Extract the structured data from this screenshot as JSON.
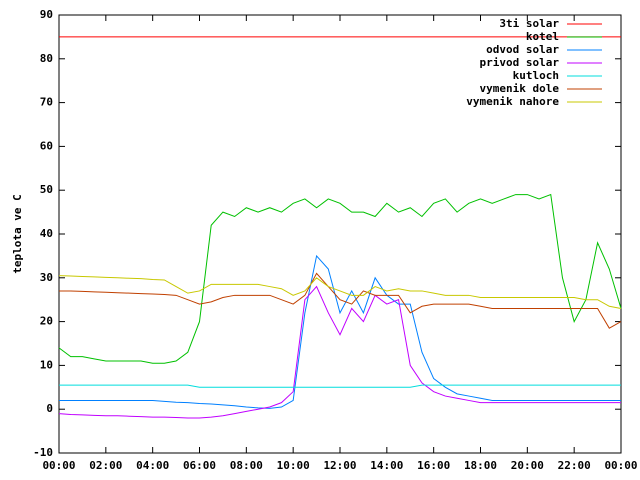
{
  "chart_data": {
    "type": "line",
    "y_label": "teplota ve C",
    "x": [
      0,
      0.5,
      1,
      1.5,
      2,
      2.5,
      3,
      3.5,
      4,
      4.5,
      5,
      5.5,
      6,
      6.5,
      7,
      7.5,
      8,
      8.5,
      9,
      9.5,
      10,
      10.5,
      11,
      11.5,
      12,
      12.5,
      13,
      13.5,
      14,
      14.5,
      15,
      15.5,
      16,
      16.5,
      17,
      17.5,
      18,
      18.5,
      19,
      19.5,
      20,
      20.5,
      21,
      21.5,
      22,
      22.5,
      23,
      23.5,
      24
    ],
    "xlim": [
      0,
      24
    ],
    "xticks": [
      {
        "value": 0,
        "label": "00:00"
      },
      {
        "value": 2,
        "label": "02:00"
      },
      {
        "value": 4,
        "label": "04:00"
      },
      {
        "value": 6,
        "label": "06:00"
      },
      {
        "value": 8,
        "label": "08:00"
      },
      {
        "value": 10,
        "label": "10:00"
      },
      {
        "value": 12,
        "label": "12:00"
      },
      {
        "value": 14,
        "label": "14:00"
      },
      {
        "value": 16,
        "label": "16:00"
      },
      {
        "value": 18,
        "label": "18:00"
      },
      {
        "value": 20,
        "label": "20:00"
      },
      {
        "value": 22,
        "label": "22:00"
      },
      {
        "value": 24,
        "label": "00:00"
      }
    ],
    "ylim": [
      -10,
      90
    ],
    "yticks": [
      -10,
      0,
      10,
      20,
      30,
      40,
      50,
      60,
      70,
      80,
      90
    ],
    "legend": "top-right",
    "series": [
      {
        "name": "3ti solar",
        "color": "#ff0000",
        "values": [
          85,
          85,
          85,
          85,
          85,
          85,
          85,
          85,
          85,
          85,
          85,
          85,
          85,
          85,
          85,
          85,
          85,
          85,
          85,
          85,
          85,
          85,
          85,
          85,
          85,
          85,
          85,
          85,
          85,
          85,
          85,
          85,
          85,
          85,
          85,
          85,
          85,
          85,
          85,
          85,
          85,
          85,
          85,
          85,
          85,
          85,
          85,
          85,
          85
        ]
      },
      {
        "name": "kotel",
        "color": "#00c000",
        "values": [
          14,
          12,
          12,
          11.5,
          11,
          11,
          11,
          11,
          10.5,
          10.5,
          11,
          13,
          20,
          42,
          45,
          44,
          46,
          45,
          46,
          45,
          47,
          48,
          46,
          48,
          47,
          45,
          45,
          44,
          47,
          45,
          46,
          44,
          47,
          48,
          45,
          47,
          48,
          47,
          48,
          49,
          49,
          48,
          49,
          30,
          20,
          25,
          38,
          32,
          23
        ]
      },
      {
        "name": "odvod solar",
        "color": "#0080ff",
        "values": [
          2,
          2,
          2,
          2,
          2,
          2,
          2,
          2,
          2,
          1.8,
          1.6,
          1.5,
          1.3,
          1.2,
          1,
          0.8,
          0.5,
          0.3,
          0.2,
          0.5,
          2,
          22,
          35,
          32,
          22,
          27,
          22,
          30,
          26,
          24,
          24,
          13,
          7,
          5,
          3.5,
          3,
          2.5,
          2,
          2,
          2,
          2,
          2,
          2,
          2,
          2,
          2,
          2,
          2,
          2
        ]
      },
      {
        "name": "privod solar",
        "color": "#c000ff",
        "values": [
          -1,
          -1.2,
          -1.3,
          -1.4,
          -1.5,
          -1.5,
          -1.6,
          -1.7,
          -1.8,
          -1.8,
          -1.9,
          -2,
          -2,
          -1.8,
          -1.5,
          -1,
          -0.5,
          0,
          0.5,
          1.5,
          4,
          25,
          28,
          22,
          17,
          23,
          20,
          26,
          24,
          25,
          10,
          6,
          4,
          3,
          2.5,
          2,
          1.5,
          1.5,
          1.5,
          1.5,
          1.5,
          1.5,
          1.5,
          1.5,
          1.5,
          1.5,
          1.5,
          1.5,
          1.5
        ]
      },
      {
        "name": "kutloch",
        "color": "#00dddd",
        "values": [
          5.5,
          5.5,
          5.5,
          5.5,
          5.5,
          5.5,
          5.5,
          5.5,
          5.5,
          5.5,
          5.5,
          5.5,
          5,
          5,
          5,
          5,
          5,
          5,
          5,
          5,
          5,
          5,
          5,
          5,
          5,
          5,
          5,
          5,
          5,
          5,
          5,
          5.5,
          5.5,
          5.5,
          5.5,
          5.5,
          5.5,
          5.5,
          5.5,
          5.5,
          5.5,
          5.5,
          5.5,
          5.5,
          5.5,
          5.5,
          5.5,
          5.5,
          5.5
        ]
      },
      {
        "name": "vymenik dole",
        "color": "#c04000",
        "values": [
          27,
          27,
          26.9,
          26.8,
          26.7,
          26.6,
          26.5,
          26.4,
          26.3,
          26.2,
          26,
          25,
          24,
          24.5,
          25.5,
          26,
          26,
          26,
          26,
          25,
          24,
          26,
          31,
          28,
          25,
          24,
          27,
          26,
          26,
          26,
          22,
          23.5,
          24,
          24,
          24,
          24,
          23.5,
          23,
          23,
          23,
          23,
          23,
          23,
          23,
          23,
          23,
          23,
          18.5,
          20
        ]
      },
      {
        "name": "vymenik nahore",
        "color": "#c8c800",
        "values": [
          30.5,
          30.4,
          30.3,
          30.2,
          30.1,
          30,
          29.9,
          29.8,
          29.6,
          29.5,
          28,
          26.5,
          27,
          28.5,
          28.5,
          28.5,
          28.5,
          28.5,
          28,
          27.5,
          26,
          27,
          30,
          28,
          27,
          26,
          26,
          28,
          27,
          27.5,
          27,
          27,
          26.5,
          26,
          26,
          26,
          25.5,
          25.5,
          25.5,
          25.5,
          25.5,
          25.5,
          25.5,
          25.5,
          25.5,
          25,
          25,
          23.5,
          23
        ]
      }
    ]
  }
}
